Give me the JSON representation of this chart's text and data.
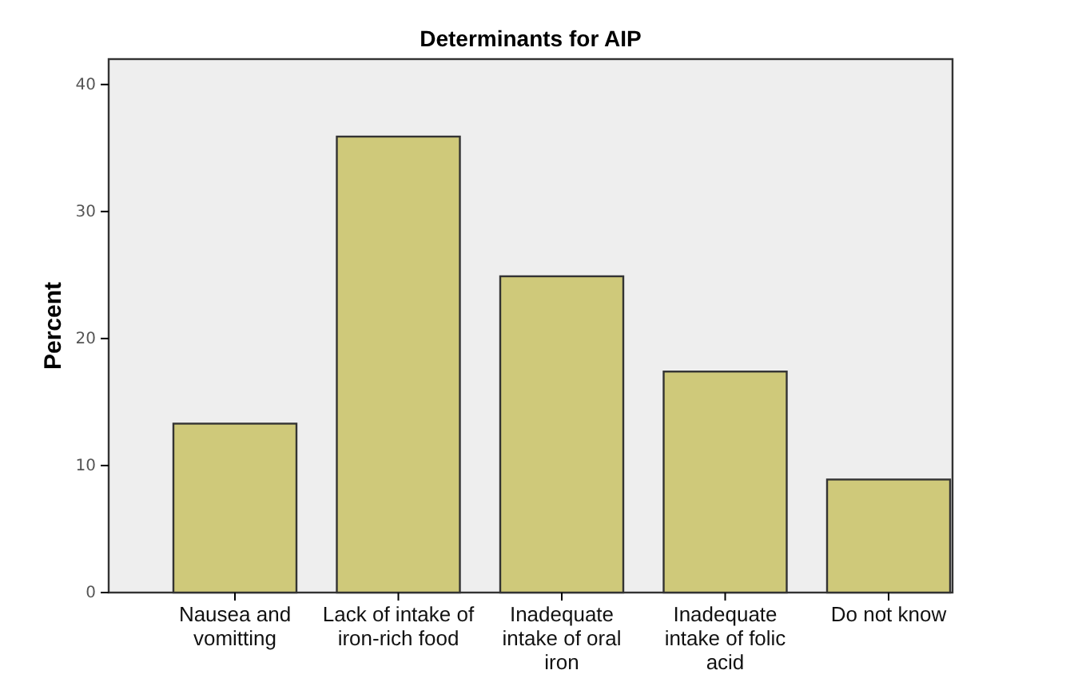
{
  "chart_data": {
    "type": "bar",
    "title": "Determinants for AIP",
    "ylabel": "Percent",
    "categories": [
      "Nausea and vomitting",
      "Lack of intake of iron-rich food",
      "Inadequate intake of oral iron",
      "Inadequate intake of folic acid",
      "Do not know"
    ],
    "values": [
      13.3,
      35.9,
      24.9,
      17.4,
      8.9
    ],
    "color": "#cfc97a",
    "ylim": [
      0,
      42
    ],
    "yticks": [
      0,
      10,
      20,
      30,
      40
    ]
  }
}
